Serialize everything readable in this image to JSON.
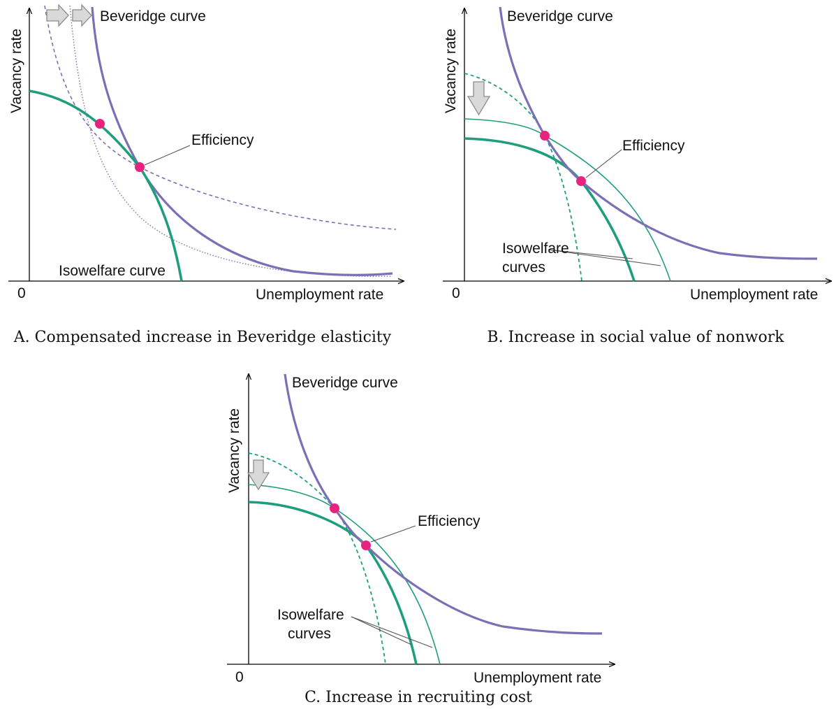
{
  "colors": {
    "beveridge": "#7b6fb6",
    "isowelfare": "#1f9e7c",
    "efficiency_point": "#e6247f",
    "shift_arrow": "#d9d9d9"
  },
  "panels": {
    "a": {
      "caption": "A. Compensated increase in Beveridge elasticity",
      "y_axis_label": "Vacancy rate",
      "x_axis_label": "Unemployment rate",
      "origin_label": "0",
      "beveridge_label": "Beveridge curve",
      "efficiency_label": "Efficiency",
      "isowelfare_label": "Isowelfare curve",
      "shift_arrows": [
        "right-arrow-icon",
        "right-arrow-icon"
      ]
    },
    "b": {
      "caption": "B. Increase in social value of nonwork",
      "y_axis_label": "Vacancy rate",
      "x_axis_label": "Unemployment rate",
      "origin_label": "0",
      "beveridge_label": "Beveridge curve",
      "efficiency_label": "Efficiency",
      "isowelfare_label_line1": "Isowelfare",
      "isowelfare_label_line2": "curves",
      "shift_arrows": [
        "down-arrow-icon"
      ]
    },
    "c": {
      "caption": "C. Increase in recruiting cost",
      "y_axis_label": "Vacancy rate",
      "x_axis_label": "Unemployment rate",
      "origin_label": "0",
      "beveridge_label": "Beveridge curve",
      "efficiency_label": "Efficiency",
      "isowelfare_label_line1": "Isowelfare",
      "isowelfare_label_line2": "curves",
      "shift_arrows": [
        "down-arrow-icon"
      ]
    }
  }
}
